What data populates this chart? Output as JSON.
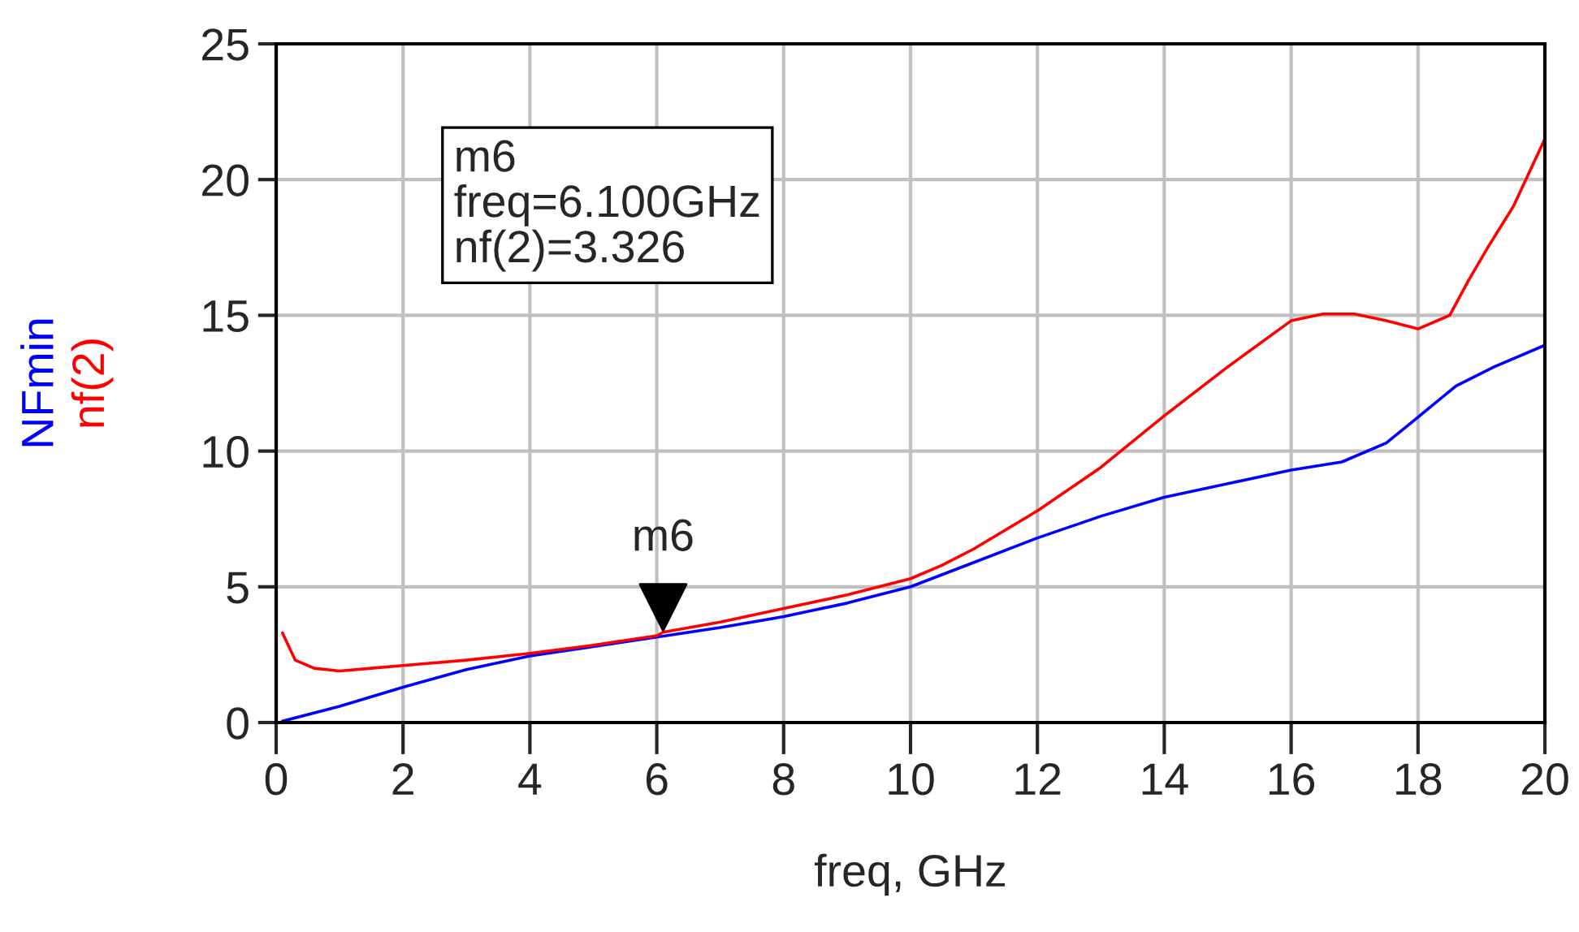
{
  "chart_data": {
    "type": "line",
    "xlabel": "freq, GHz",
    "legend": false,
    "grid": true,
    "xlim": [
      0,
      20
    ],
    "ylim": [
      0,
      25
    ],
    "xticks": [
      0,
      2,
      4,
      6,
      8,
      10,
      12,
      14,
      16,
      18,
      20
    ],
    "yticks": [
      0,
      5,
      10,
      15,
      20,
      25
    ],
    "series": [
      {
        "name": "NFmin",
        "color": "#0000ff",
        "x": [
          0.1,
          1,
          2,
          3,
          4,
          5,
          6,
          7,
          8,
          9,
          10,
          11,
          12,
          13,
          14,
          15,
          16,
          16.8,
          17.5,
          18,
          18.6,
          19.2,
          20
        ],
        "values": [
          0.05,
          0.6,
          1.3,
          1.95,
          2.45,
          2.8,
          3.15,
          3.5,
          3.9,
          4.4,
          5.0,
          5.9,
          6.8,
          7.6,
          8.3,
          8.8,
          9.3,
          9.6,
          10.3,
          11.25,
          12.4,
          13.1,
          13.9
        ]
      },
      {
        "name": "nf(2)",
        "color": "#ff0000",
        "x": [
          0.1,
          0.3,
          0.6,
          1,
          1.5,
          2,
          3,
          4,
          5,
          6,
          6.1,
          7,
          8,
          9,
          10,
          10.5,
          11,
          12,
          13,
          14,
          15,
          16,
          16.5,
          17,
          17.5,
          18,
          18.5,
          18.8,
          19.1,
          19.5,
          20
        ],
        "values": [
          3.3,
          2.3,
          2.0,
          1.9,
          2.0,
          2.1,
          2.3,
          2.55,
          2.85,
          3.2,
          3.326,
          3.7,
          4.2,
          4.7,
          5.3,
          5.8,
          6.4,
          7.8,
          9.4,
          11.3,
          13.1,
          14.8,
          15.05,
          15.05,
          14.8,
          14.5,
          15.0,
          16.3,
          17.5,
          19.0,
          21.5
        ]
      }
    ],
    "annotations": [
      {
        "text": "m6",
        "x": 6.1,
        "y": 3.326
      },
      "m6\nfreq=6.100GHz\nnf(2)=3.326"
    ]
  }
}
